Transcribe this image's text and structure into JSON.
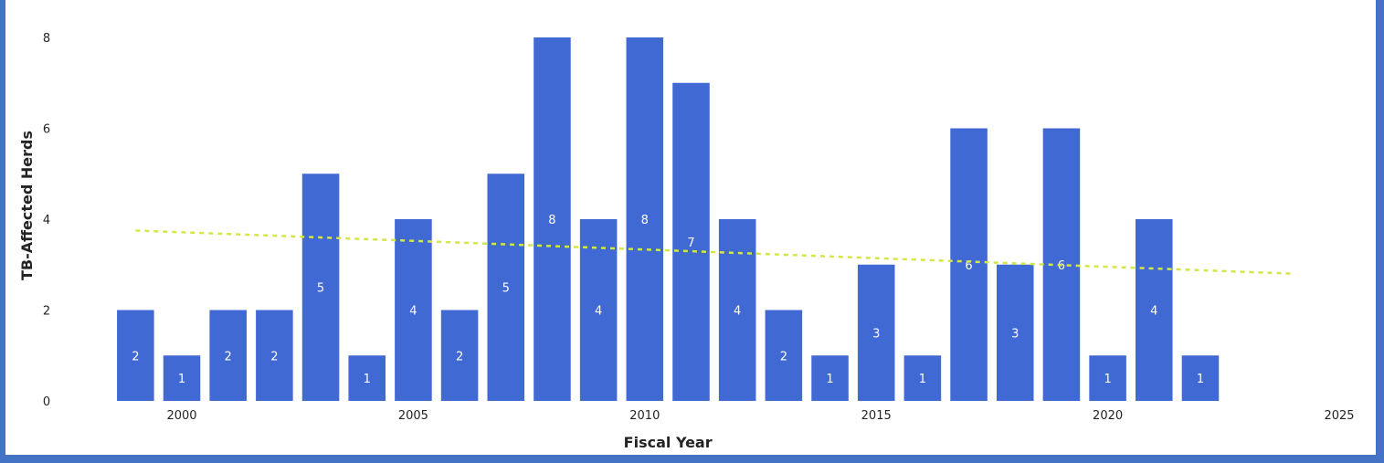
{
  "chart_data": {
    "type": "bar",
    "xlabel": "Fiscal Year",
    "ylabel": "TB-Affected Herds",
    "x": [
      1999,
      2000,
      2001,
      2002,
      2003,
      2004,
      2005,
      2006,
      2007,
      2008,
      2009,
      2010,
      2011,
      2012,
      2013,
      2014,
      2015,
      2016,
      2017,
      2018,
      2019,
      2020,
      2021,
      2022
    ],
    "values": [
      2,
      1,
      2,
      2,
      5,
      1,
      4,
      2,
      5,
      8,
      4,
      8,
      7,
      4,
      2,
      1,
      3,
      1,
      6,
      3,
      6,
      1,
      4,
      1
    ],
    "xticks": [
      2000,
      2005,
      2010,
      2015,
      2020,
      2025
    ],
    "yticks": [
      0,
      2,
      4,
      6,
      8
    ],
    "xlim": [
      1998.5,
      2025
    ],
    "ylim": [
      0,
      8
    ],
    "data_labels": true,
    "trendline": {
      "type": "linear",
      "x_start": 1999,
      "y_start": 3.75,
      "x_end": 2024,
      "y_end": 2.8,
      "color": "#d4e64a"
    },
    "bar_color": "#4169d4",
    "grid": false
  }
}
